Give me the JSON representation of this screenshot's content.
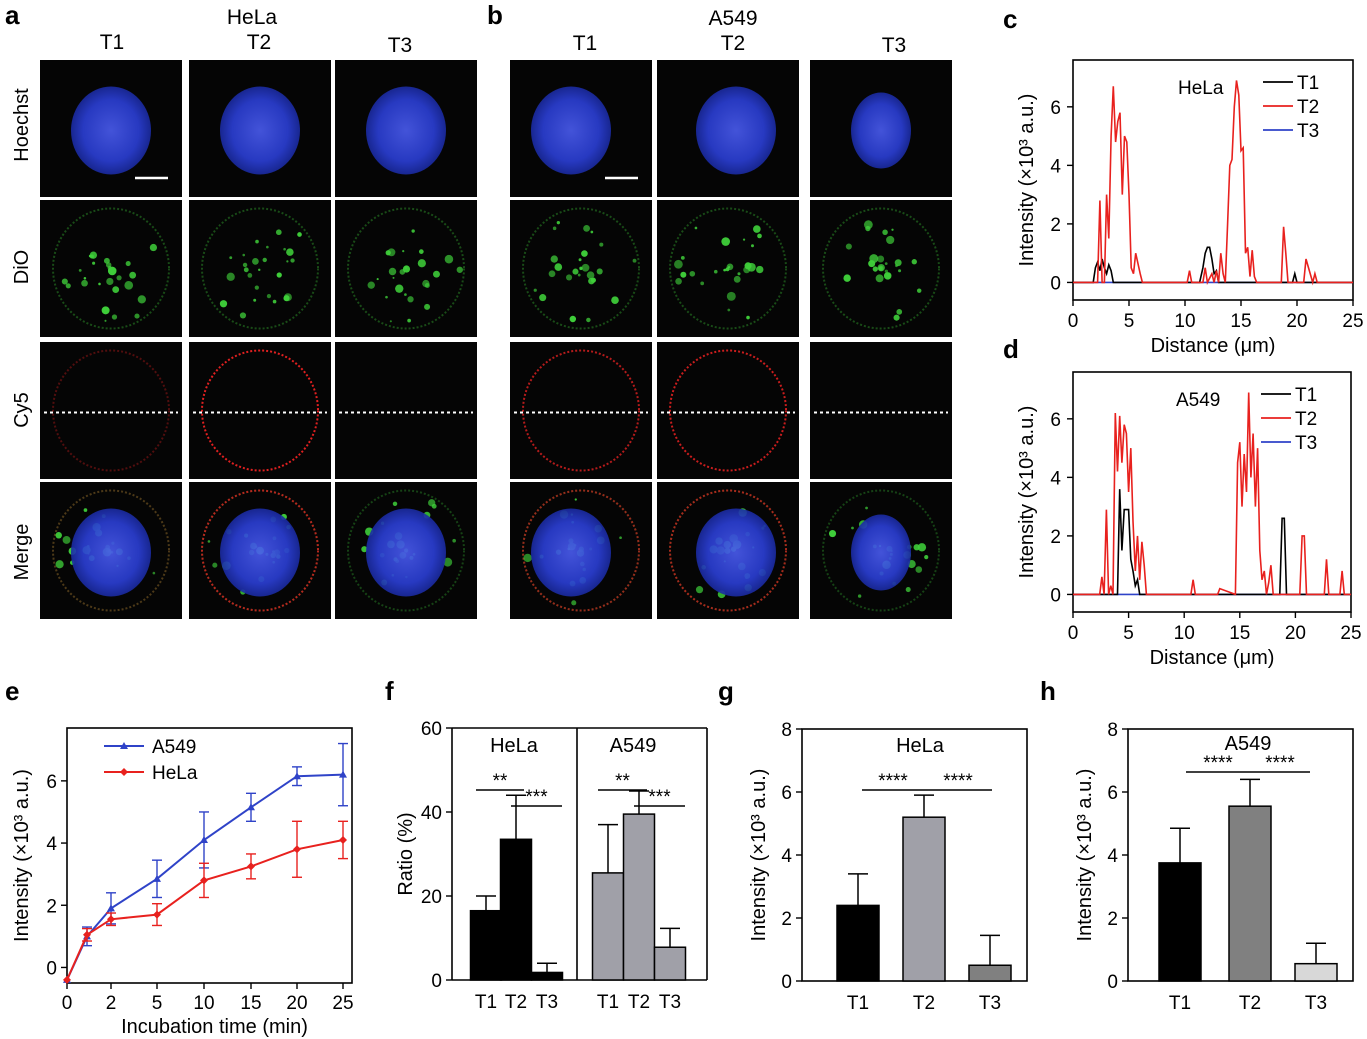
{
  "colors": {
    "hoechst": "#2b3fd6",
    "dio": "#3fcf3a",
    "cy5": "#e02020",
    "t1": "#000000",
    "t2": "#e8211e",
    "t3": "#2f43c8",
    "bar_t1": "#000000",
    "bar_t2": "#a0a0a8",
    "bar_t3_light": "#d8d8d8",
    "bar_t2_dark": "#808080"
  },
  "panel_labels": {
    "a": "a",
    "b": "b",
    "c": "c",
    "d": "d",
    "e": "e",
    "f": "f",
    "g": "g",
    "h": "h"
  },
  "micro_a": {
    "title": "HeLa",
    "cols": [
      "T1",
      "T2",
      "T3"
    ]
  },
  "micro_b": {
    "title": "A549",
    "cols": [
      "T1",
      "T2",
      "T3"
    ]
  },
  "rows": [
    "Hoechst",
    "DiO",
    "Cy5",
    "Merge"
  ],
  "chart_data": [
    {
      "id": "c",
      "type": "line",
      "legend_title": "HeLa",
      "xlabel": "Distance (μm)",
      "ylabel": "Intensity (×10³ a.u.)",
      "xlim": [
        0,
        25
      ],
      "ylim": [
        -0.6,
        7.6
      ],
      "xticks": [
        "0",
        "5",
        "10",
        "15",
        "20",
        "25"
      ],
      "yticks": [
        "0",
        "2",
        "4",
        "6"
      ],
      "legend": "top-right",
      "series": [
        {
          "name": "T1",
          "x": [
            0,
            1.8,
            2,
            2.2,
            2.4,
            2.6,
            2.8,
            3.0,
            3.2,
            3.4,
            3.6,
            11.3,
            11.6,
            11.8,
            12.0,
            12.2,
            12.4,
            12.6,
            12.8,
            13.0,
            19.6,
            19.8,
            20.0,
            25
          ],
          "y": [
            0,
            0,
            0.5,
            0.7,
            0.4,
            0.8,
            0.5,
            0.3,
            0.6,
            0.4,
            0,
            0,
            0.5,
            1.0,
            1.2,
            1.2,
            0.8,
            0.3,
            0.4,
            0,
            0,
            0.3,
            0,
            0
          ]
        },
        {
          "name": "T2",
          "x": [
            0,
            2.2,
            2.4,
            2.6,
            2.8,
            3.0,
            3.2,
            3.4,
            3.6,
            3.8,
            4.0,
            4.2,
            4.4,
            4.6,
            4.8,
            5.0,
            5.2,
            5.4,
            5.6,
            6.0,
            6.2,
            10.2,
            10.4,
            10.6,
            11.6,
            11.8,
            12.0,
            12.4,
            12.6,
            12.8,
            13.0,
            13.2,
            13.4,
            13.6,
            13.8,
            14.0,
            14.2,
            14.4,
            14.6,
            14.8,
            15.0,
            15.2,
            15.4,
            15.6,
            15.8,
            16.0,
            16.2,
            16.4,
            18.6,
            18.8,
            19.0,
            19.2,
            20.6,
            20.8,
            21.4,
            21.6,
            21.8,
            25
          ],
          "y": [
            0,
            0,
            2.8,
            0,
            0,
            3.0,
            1.5,
            5.0,
            6.7,
            4.8,
            5.5,
            5.8,
            3.0,
            5.0,
            4.8,
            3.0,
            0.5,
            0.3,
            1.0,
            0.3,
            0,
            0,
            0.4,
            0,
            0,
            0.5,
            0,
            0.3,
            0,
            0.4,
            0,
            1.0,
            0.3,
            0,
            2.0,
            4.0,
            4.2,
            6.0,
            6.9,
            6.4,
            4.5,
            4.6,
            1.0,
            1.2,
            0.2,
            1.1,
            0.2,
            0,
            0,
            1.9,
            1.0,
            0,
            0,
            0.8,
            0,
            0.3,
            0,
            0
          ]
        },
        {
          "name": "T3",
          "x": [
            0,
            25
          ],
          "y": [
            0,
            0
          ]
        }
      ]
    },
    {
      "id": "d",
      "type": "line",
      "legend_title": "A549",
      "xlabel": "Distance (μm)",
      "ylabel": "Intensity (×10³ a.u.)",
      "xlim": [
        0,
        25
      ],
      "ylim": [
        -0.6,
        7.6
      ],
      "xticks": [
        "0",
        "5",
        "10",
        "15",
        "20",
        "25"
      ],
      "yticks": [
        "0",
        "2",
        "4",
        "6"
      ],
      "legend": "top-right",
      "series": [
        {
          "name": "T1",
          "x": [
            0,
            4.0,
            4.2,
            4.4,
            4.6,
            4.8,
            5.0,
            5.2,
            5.4,
            5.6,
            5.8,
            6.0,
            18.6,
            18.8,
            19.0,
            19.2,
            25
          ],
          "y": [
            0,
            0,
            3.6,
            1.5,
            2.9,
            2.9,
            2.9,
            1.2,
            0.8,
            0.3,
            0.5,
            0,
            0,
            2.6,
            2.6,
            0,
            0
          ]
        },
        {
          "name": "T2",
          "x": [
            0,
            2.4,
            2.6,
            2.8,
            3.0,
            3.2,
            3.4,
            3.6,
            3.8,
            4.0,
            4.2,
            4.4,
            4.6,
            4.8,
            5.0,
            5.2,
            5.4,
            5.6,
            5.8,
            6.0,
            6.2,
            6.4,
            6.6,
            10.6,
            10.8,
            11.0,
            13.0,
            13.2,
            14.6,
            14.8,
            15.0,
            15.2,
            15.4,
            15.6,
            15.8,
            16.0,
            16.2,
            16.4,
            16.6,
            16.8,
            17.0,
            17.2,
            17.4,
            17.6,
            17.8,
            18.0,
            20.4,
            20.6,
            20.8,
            21.0,
            22.6,
            22.8,
            23.0,
            24.0,
            24.2,
            24.4,
            25
          ],
          "y": [
            0,
            0,
            0.6,
            0,
            2.9,
            0,
            0.3,
            0,
            6.2,
            4.2,
            6.1,
            4.5,
            5.8,
            5.5,
            3.5,
            5.0,
            2.5,
            0.8,
            2.0,
            0.5,
            1.8,
            1.0,
            0,
            0,
            0.5,
            0,
            0,
            0.2,
            0,
            4.5,
            5.2,
            3.0,
            4.8,
            3.5,
            6.9,
            4.0,
            5.5,
            3.0,
            5.0,
            1.5,
            0.5,
            0.8,
            0,
            0.4,
            1.0,
            0,
            0,
            2.0,
            2.0,
            0,
            0,
            1.2,
            0,
            0,
            0.8,
            0,
            0
          ]
        },
        {
          "name": "T3",
          "x": [
            0,
            25
          ],
          "y": [
            0,
            0
          ]
        }
      ]
    },
    {
      "id": "e",
      "type": "line",
      "xlabel": "Incubation time (min)",
      "ylabel": "Intensity (×10³ a.u.)",
      "xticks": [
        "0",
        "2",
        "5",
        "10",
        "15",
        "20",
        "25"
      ],
      "yticks": [
        "0",
        "2",
        "4",
        "6"
      ],
      "ylim": [
        -0.5,
        7.7
      ],
      "legend": "top-left",
      "series": [
        {
          "name": "A549",
          "x": [
            0,
            1,
            2,
            5,
            10,
            15,
            20,
            25
          ],
          "y": [
            -0.4,
            1.0,
            1.9,
            2.85,
            4.1,
            5.15,
            6.15,
            6.2
          ],
          "err": [
            0,
            0.3,
            0.5,
            0.6,
            0.9,
            0.45,
            0.3,
            1.0
          ]
        },
        {
          "name": "HeLa",
          "x": [
            0,
            1,
            2,
            5,
            10,
            15,
            20,
            25
          ],
          "y": [
            -0.4,
            1.05,
            1.55,
            1.7,
            2.8,
            3.25,
            3.8,
            4.1
          ],
          "err": [
            0,
            0.2,
            0.2,
            0.35,
            0.55,
            0.4,
            0.9,
            0.6
          ]
        }
      ]
    },
    {
      "id": "f",
      "type": "bar",
      "ylabel": "Ratio (%)",
      "ylim": [
        0,
        60
      ],
      "yticks": [
        "0",
        "20",
        "40",
        "60"
      ],
      "groups": [
        {
          "name": "HeLa",
          "categories": [
            "T1",
            "T2",
            "T3"
          ],
          "values": [
            16.5,
            33.5,
            1.8
          ],
          "err": [
            3.5,
            10.5,
            2.2
          ],
          "significance": [
            "**",
            "***"
          ]
        },
        {
          "name": "A549",
          "categories": [
            "T1",
            "T2",
            "T3"
          ],
          "values": [
            25.5,
            39.5,
            7.8
          ],
          "err": [
            11.5,
            5.5,
            4.5
          ],
          "significance": [
            "**",
            "***"
          ]
        }
      ]
    },
    {
      "id": "g",
      "type": "bar",
      "title": "HeLa",
      "ylabel": "Intensity (×10³ a.u.)",
      "ylim": [
        0,
        8
      ],
      "yticks": [
        "0",
        "2",
        "4",
        "6",
        "8"
      ],
      "categories": [
        "T1",
        "T2",
        "T3"
      ],
      "values": [
        2.4,
        5.2,
        0.5
      ],
      "err": [
        1.0,
        0.7,
        0.95
      ],
      "significance": [
        "****",
        "****"
      ]
    },
    {
      "id": "h",
      "type": "bar",
      "title": "A549",
      "ylabel": "Intensity (×10³ a.u.)",
      "ylim": [
        0,
        8
      ],
      "yticks": [
        "0",
        "2",
        "4",
        "6",
        "8"
      ],
      "categories": [
        "T1",
        "T2",
        "T3"
      ],
      "values": [
        3.75,
        5.55,
        0.55
      ],
      "err": [
        1.1,
        0.85,
        0.65
      ],
      "significance": [
        "****",
        "****"
      ]
    }
  ]
}
